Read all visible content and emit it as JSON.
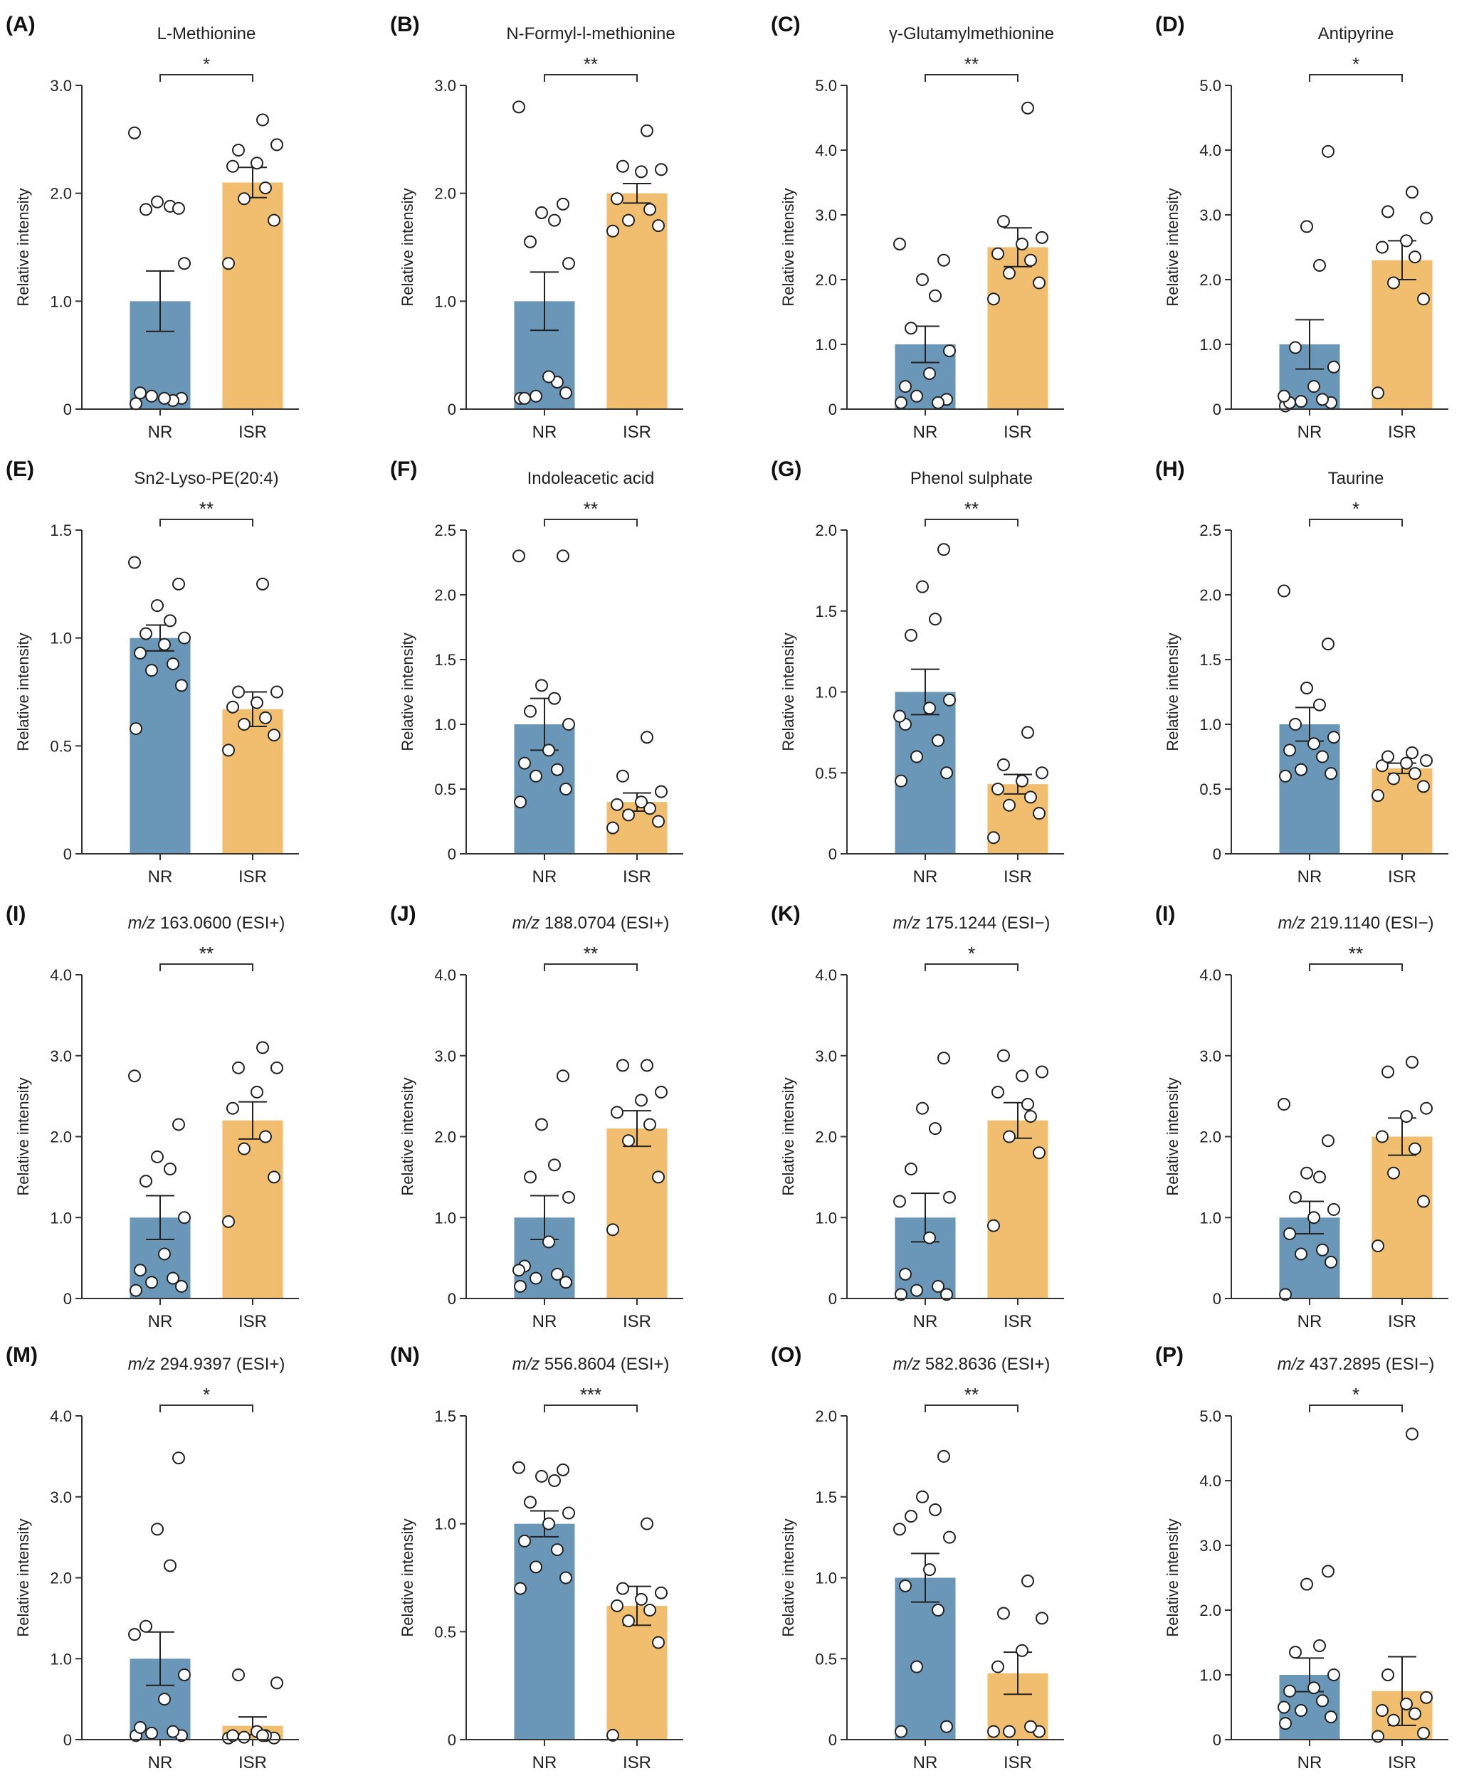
{
  "colors": {
    "NR": "#6a97b8",
    "ISR": "#f0be6e",
    "axis": "#333333",
    "point_stroke": "#222222",
    "point_fill": "#ffffff"
  },
  "chart_data": [
    {
      "panel": "(A)",
      "title": "L-Methionine",
      "title_italic": "",
      "type": "bar",
      "ylabel": "Relative intensity",
      "categories": [
        "NR",
        "ISR"
      ],
      "values": [
        1.0,
        2.1
      ],
      "sem": [
        0.28,
        0.14
      ],
      "ylim": [
        0,
        3.0
      ],
      "ticks": [
        0,
        1.0,
        2.0,
        3.0
      ],
      "tick_labels": [
        "0",
        "1.0",
        "2.0",
        "3.0"
      ],
      "significance": "*",
      "points": {
        "NR": [
          0.05,
          0.1,
          0.12,
          0.08,
          0.15,
          0.1,
          1.35,
          1.85,
          1.88,
          1.92,
          1.86,
          2.56
        ],
        "ISR": [
          1.35,
          1.75,
          1.95,
          2.05,
          2.25,
          2.28,
          2.45,
          2.4,
          2.68
        ]
      }
    },
    {
      "panel": "(B)",
      "title": "N-Formyl-l-methionine",
      "title_italic": "",
      "type": "bar",
      "ylabel": "Relative intensity",
      "categories": [
        "NR",
        "ISR"
      ],
      "values": [
        1.0,
        2.0
      ],
      "sem": [
        0.27,
        0.09
      ],
      "ylim": [
        0,
        3.0
      ],
      "ticks": [
        0,
        1.0,
        2.0,
        3.0
      ],
      "tick_labels": [
        "0",
        "1.0",
        "2.0",
        "3.0"
      ],
      "significance": "**",
      "points": {
        "NR": [
          0.1,
          0.15,
          0.12,
          0.25,
          0.1,
          0.3,
          1.35,
          1.55,
          1.75,
          1.82,
          1.9,
          2.8
        ],
        "ISR": [
          1.65,
          1.7,
          1.75,
          1.85,
          1.95,
          2.2,
          2.22,
          2.25,
          2.58
        ]
      }
    },
    {
      "panel": "(C)",
      "title": "γ-Glutamylmethionine",
      "title_italic": "",
      "type": "bar",
      "ylabel": "Relative intensity",
      "categories": [
        "NR",
        "ISR"
      ],
      "values": [
        1.0,
        2.5
      ],
      "sem": [
        0.28,
        0.3
      ],
      "ylim": [
        0,
        5.0
      ],
      "ticks": [
        0,
        1.0,
        2.0,
        3.0,
        4.0,
        5.0
      ],
      "tick_labels": [
        "0",
        "1.0",
        "2.0",
        "3.0",
        "4.0",
        "5.0"
      ],
      "significance": "**",
      "points": {
        "NR": [
          0.1,
          0.15,
          0.2,
          0.1,
          0.35,
          0.55,
          0.9,
          1.25,
          1.75,
          2.0,
          2.3,
          2.55
        ],
        "ISR": [
          1.7,
          1.95,
          2.1,
          2.3,
          2.4,
          2.55,
          2.65,
          2.9,
          4.65
        ]
      }
    },
    {
      "panel": "(D)",
      "title": "Antipyrine",
      "title_italic": "",
      "type": "bar",
      "ylabel": "Relative intensity",
      "categories": [
        "NR",
        "ISR"
      ],
      "values": [
        1.0,
        2.3
      ],
      "sem": [
        0.38,
        0.3
      ],
      "ylim": [
        0,
        5.0
      ],
      "ticks": [
        0,
        1.0,
        2.0,
        3.0,
        4.0,
        5.0
      ],
      "tick_labels": [
        "0",
        "1.0",
        "2.0",
        "3.0",
        "4.0",
        "5.0"
      ],
      "significance": "*",
      "points": {
        "NR": [
          0.05,
          0.1,
          0.12,
          0.15,
          0.1,
          0.35,
          0.65,
          0.95,
          2.22,
          2.82,
          3.98,
          0.2
        ],
        "ISR": [
          0.25,
          1.7,
          1.95,
          2.35,
          2.5,
          2.6,
          2.95,
          3.05,
          3.35
        ]
      }
    },
    {
      "panel": "(E)",
      "title": "Sn2-Lyso-PE(20:4)",
      "title_italic": "",
      "type": "bar",
      "ylabel": "Relative intensity",
      "categories": [
        "NR",
        "ISR"
      ],
      "values": [
        1.0,
        0.67
      ],
      "sem": [
        0.06,
        0.08
      ],
      "ylim": [
        0,
        1.5
      ],
      "ticks": [
        0,
        0.5,
        1.0,
        1.5
      ],
      "tick_labels": [
        "0",
        "0.5",
        "1.0",
        "1.5"
      ],
      "significance": "**",
      "points": {
        "NR": [
          0.58,
          0.78,
          0.85,
          0.88,
          0.93,
          0.97,
          1.0,
          1.02,
          1.08,
          1.15,
          1.25,
          1.35
        ],
        "ISR": [
          0.48,
          0.55,
          0.6,
          0.63,
          0.68,
          0.7,
          0.75,
          0.75,
          1.25
        ]
      }
    },
    {
      "panel": "(F)",
      "title": "Indoleacetic acid",
      "title_italic": "",
      "type": "bar",
      "ylabel": "Relative intensity",
      "categories": [
        "NR",
        "ISR"
      ],
      "values": [
        1.0,
        0.4
      ],
      "sem": [
        0.2,
        0.07
      ],
      "ylim": [
        0,
        2.5
      ],
      "ticks": [
        0,
        0.5,
        1.0,
        1.5,
        2.0,
        2.5
      ],
      "tick_labels": [
        "0",
        "0.5",
        "1.0",
        "1.5",
        "2.0",
        "2.5"
      ],
      "significance": "**",
      "points": {
        "NR": [
          0.4,
          0.5,
          0.6,
          0.65,
          0.7,
          0.8,
          1.0,
          1.1,
          1.2,
          1.3,
          2.3,
          2.3
        ],
        "ISR": [
          0.2,
          0.25,
          0.3,
          0.35,
          0.38,
          0.4,
          0.48,
          0.6,
          0.9
        ]
      }
    },
    {
      "panel": "(G)",
      "title": "Phenol sulphate",
      "title_italic": "",
      "type": "bar",
      "ylabel": "Relative intensity",
      "categories": [
        "NR",
        "ISR"
      ],
      "values": [
        1.0,
        0.43
      ],
      "sem": [
        0.14,
        0.06
      ],
      "ylim": [
        0,
        2.0
      ],
      "ticks": [
        0,
        0.5,
        1.0,
        1.5,
        2.0
      ],
      "tick_labels": [
        "0",
        "0.5",
        "1.0",
        "1.5",
        "2.0"
      ],
      "significance": "**",
      "points": {
        "NR": [
          0.45,
          0.5,
          0.6,
          0.7,
          0.8,
          0.9,
          0.95,
          1.35,
          1.45,
          1.65,
          1.88,
          0.85
        ],
        "ISR": [
          0.1,
          0.25,
          0.3,
          0.35,
          0.4,
          0.45,
          0.5,
          0.55,
          0.75
        ]
      }
    },
    {
      "panel": "(H)",
      "title": "Taurine",
      "title_italic": "",
      "type": "bar",
      "ylabel": "Relative intensity",
      "categories": [
        "NR",
        "ISR"
      ],
      "values": [
        1.0,
        0.66
      ],
      "sem": [
        0.13,
        0.04
      ],
      "ylim": [
        0,
        2.5
      ],
      "ticks": [
        0,
        0.5,
        1.0,
        1.5,
        2.0,
        2.5
      ],
      "tick_labels": [
        "0",
        "0.5",
        "1.0",
        "1.5",
        "2.0",
        "2.5"
      ],
      "significance": "*",
      "points": {
        "NR": [
          0.6,
          0.62,
          0.65,
          0.75,
          0.8,
          0.85,
          0.9,
          1.0,
          1.15,
          1.28,
          1.62,
          2.03
        ],
        "ISR": [
          0.45,
          0.52,
          0.58,
          0.62,
          0.68,
          0.7,
          0.72,
          0.75,
          0.78
        ]
      }
    },
    {
      "panel": "(I)",
      "title": " 163.0600 (ESI+)",
      "title_italic": "m/z",
      "type": "bar",
      "ylabel": "Relative intensity",
      "categories": [
        "NR",
        "ISR"
      ],
      "values": [
        1.0,
        2.2
      ],
      "sem": [
        0.27,
        0.23
      ],
      "ylim": [
        0,
        4.0
      ],
      "ticks": [
        0,
        1.0,
        2.0,
        3.0,
        4.0
      ],
      "tick_labels": [
        "0",
        "1.0",
        "2.0",
        "3.0",
        "4.0"
      ],
      "significance": "**",
      "points": {
        "NR": [
          0.1,
          0.15,
          0.2,
          0.25,
          0.35,
          0.55,
          1.0,
          1.45,
          1.6,
          1.75,
          2.15,
          2.75
        ],
        "ISR": [
          0.95,
          1.5,
          1.85,
          2.0,
          2.35,
          2.55,
          2.85,
          2.85,
          3.1
        ]
      }
    },
    {
      "panel": "(J)",
      "title": " 188.0704 (ESI+)",
      "title_italic": "m/z",
      "type": "bar",
      "ylabel": "Relative intensity",
      "categories": [
        "NR",
        "ISR"
      ],
      "values": [
        1.0,
        2.1
      ],
      "sem": [
        0.27,
        0.22
      ],
      "ylim": [
        0,
        4.0
      ],
      "ticks": [
        0,
        1.0,
        2.0,
        3.0,
        4.0
      ],
      "tick_labels": [
        "0",
        "1.0",
        "2.0",
        "3.0",
        "4.0"
      ],
      "significance": "**",
      "points": {
        "NR": [
          0.15,
          0.2,
          0.25,
          0.3,
          0.4,
          0.7,
          1.25,
          1.5,
          1.65,
          2.15,
          2.75,
          0.35
        ],
        "ISR": [
          0.85,
          1.5,
          1.95,
          2.15,
          2.3,
          2.45,
          2.55,
          2.88,
          2.88
        ]
      }
    },
    {
      "panel": "(K)",
      "title": " 175.1244 (ESI−)",
      "title_italic": "m/z",
      "type": "bar",
      "ylabel": "Relative intensity",
      "categories": [
        "NR",
        "ISR"
      ],
      "values": [
        1.0,
        2.2
      ],
      "sem": [
        0.3,
        0.22
      ],
      "ylim": [
        0,
        4.0
      ],
      "ticks": [
        0,
        1.0,
        2.0,
        3.0,
        4.0
      ],
      "tick_labels": [
        "0",
        "1.0",
        "2.0",
        "3.0",
        "4.0"
      ],
      "significance": "*",
      "points": {
        "NR": [
          0.05,
          0.05,
          0.1,
          0.15,
          0.3,
          0.75,
          1.25,
          1.6,
          2.1,
          2.35,
          2.97,
          1.2
        ],
        "ISR": [
          0.9,
          1.8,
          2.0,
          2.25,
          2.55,
          2.75,
          2.8,
          3.0,
          2.4
        ]
      }
    },
    {
      "panel": "(I)",
      "title": " 219.1140 (ESI−)",
      "title_italic": "m/z",
      "type": "bar",
      "ylabel": "Relative intensity",
      "categories": [
        "NR",
        "ISR"
      ],
      "values": [
        1.0,
        2.0
      ],
      "sem": [
        0.2,
        0.23
      ],
      "ylim": [
        0,
        4.0
      ],
      "ticks": [
        0,
        1.0,
        2.0,
        3.0,
        4.0
      ],
      "tick_labels": [
        "0",
        "1.0",
        "2.0",
        "3.0",
        "4.0"
      ],
      "significance": "**",
      "points": {
        "NR": [
          0.05,
          0.45,
          0.55,
          0.6,
          0.8,
          1.0,
          1.1,
          1.25,
          1.5,
          1.55,
          1.95,
          2.4
        ],
        "ISR": [
          0.65,
          1.2,
          1.55,
          1.85,
          2.0,
          2.25,
          2.35,
          2.8,
          2.92
        ]
      }
    },
    {
      "panel": "(M)",
      "title": " 294.9397 (ESI+)",
      "title_italic": "m/z",
      "type": "bar",
      "ylabel": "Relative intensity",
      "categories": [
        "NR",
        "ISR"
      ],
      "values": [
        1.0,
        0.17
      ],
      "sem": [
        0.33,
        0.11
      ],
      "ylim": [
        0,
        4.0
      ],
      "ticks": [
        0,
        1.0,
        2.0,
        3.0,
        4.0
      ],
      "tick_labels": [
        "0",
        "1.0",
        "2.0",
        "3.0",
        "4.0"
      ],
      "significance": "*",
      "points": {
        "NR": [
          0.05,
          0.05,
          0.08,
          0.1,
          0.15,
          0.5,
          0.8,
          1.4,
          2.15,
          2.6,
          3.48,
          1.3
        ],
        "ISR": [
          0.02,
          0.02,
          0.03,
          0.05,
          0.05,
          0.1,
          0.7,
          0.8,
          0.05
        ]
      }
    },
    {
      "panel": "(N)",
      "title": " 556.8604 (ESI+)",
      "title_italic": "m/z",
      "type": "bar",
      "ylabel": "Relative intensity",
      "categories": [
        "NR",
        "ISR"
      ],
      "values": [
        1.0,
        0.62
      ],
      "sem": [
        0.06,
        0.09
      ],
      "ylim": [
        0,
        1.5
      ],
      "ticks": [
        0,
        0.5,
        1.0,
        1.5
      ],
      "tick_labels": [
        "0",
        "0.5",
        "1.0",
        "1.5"
      ],
      "significance": "***",
      "points": {
        "NR": [
          0.7,
          0.75,
          0.8,
          0.88,
          0.92,
          1.0,
          1.05,
          1.1,
          1.2,
          1.22,
          1.25,
          1.26
        ],
        "ISR": [
          0.02,
          0.45,
          0.55,
          0.6,
          0.62,
          0.65,
          0.68,
          0.7,
          1.0
        ]
      }
    },
    {
      "panel": "(O)",
      "title": " 582.8636 (ESI+)",
      "title_italic": "m/z",
      "type": "bar",
      "ylabel": "Relative intensity",
      "categories": [
        "NR",
        "ISR"
      ],
      "values": [
        1.0,
        0.41
      ],
      "sem": [
        0.15,
        0.13
      ],
      "ylim": [
        0,
        2.0
      ],
      "ticks": [
        0,
        0.5,
        1.0,
        1.5,
        2.0
      ],
      "tick_labels": [
        "0",
        "0.5",
        "1.0",
        "1.5",
        "2.0"
      ],
      "significance": "**",
      "points": {
        "NR": [
          0.05,
          0.08,
          0.45,
          0.8,
          0.95,
          1.05,
          1.25,
          1.38,
          1.42,
          1.5,
          1.75,
          1.3
        ],
        "ISR": [
          0.05,
          0.05,
          0.05,
          0.08,
          0.45,
          0.55,
          0.75,
          0.78,
          0.98
        ]
      }
    },
    {
      "panel": "(P)",
      "title": " 437.2895 (ESI−)",
      "title_italic": "m/z",
      "type": "bar",
      "ylabel": "Relative intensity",
      "categories": [
        "NR",
        "ISR"
      ],
      "values": [
        1.0,
        0.75
      ],
      "sem": [
        0.26,
        0.53
      ],
      "ylim": [
        0,
        5.0
      ],
      "ticks": [
        0,
        1.0,
        2.0,
        3.0,
        4.0,
        5.0
      ],
      "tick_labels": [
        "0",
        "1.0",
        "2.0",
        "3.0",
        "4.0",
        "5.0"
      ],
      "significance": "*",
      "points": {
        "NR": [
          0.25,
          0.35,
          0.45,
          0.6,
          0.75,
          0.8,
          1.0,
          1.35,
          1.45,
          2.4,
          2.6,
          0.5
        ],
        "ISR": [
          0.05,
          0.1,
          0.3,
          0.4,
          0.45,
          0.55,
          0.65,
          1.0,
          4.72
        ]
      }
    }
  ]
}
